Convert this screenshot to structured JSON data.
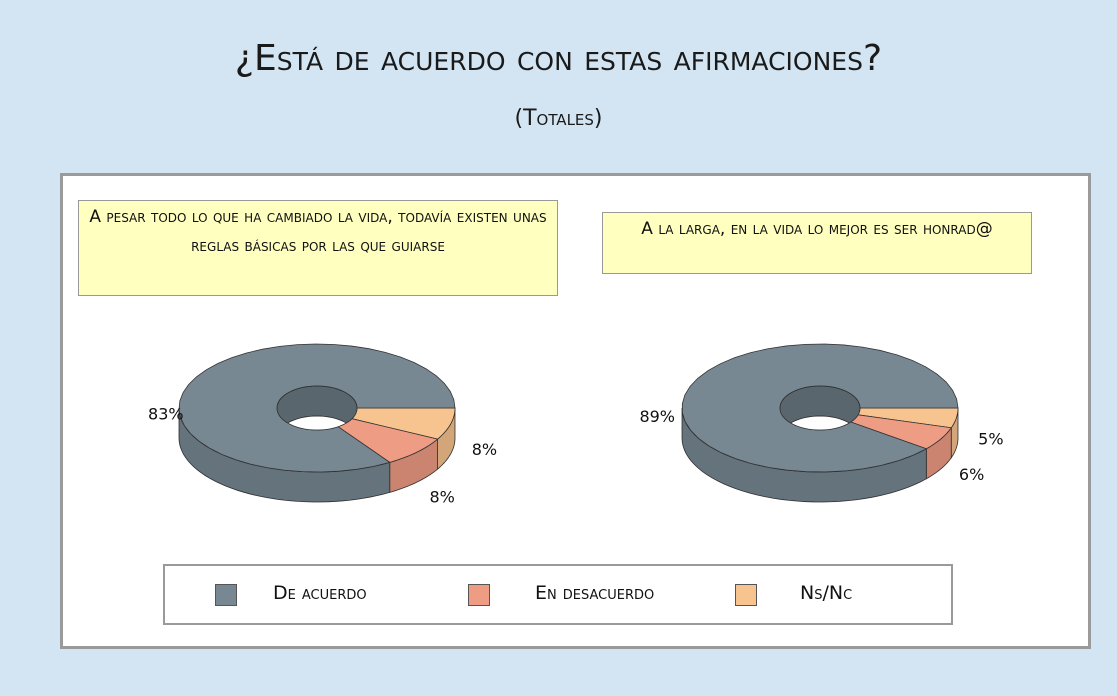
{
  "title": "¿Está de acuerdo con estas afirmaciones?",
  "subtitle": "(Totales)",
  "legend": {
    "categories": [
      "De acuerdo",
      "En desacuerdo",
      "Ns/Nc"
    ],
    "colors": [
      "#778893",
      "#ee9c84",
      "#f7c48f"
    ]
  },
  "chart_data": [
    {
      "type": "doughnut3d",
      "title": "A pesar todo lo que ha cambiado la vida, todavía existen unas reglas básicas por las que guiarse",
      "values": [
        83,
        8,
        8
      ],
      "value_labels": [
        "83%",
        "8%",
        "8%"
      ]
    },
    {
      "type": "doughnut3d",
      "title": "A la larga, en la vida lo mejor es ser honrad@",
      "values": [
        89,
        6,
        5
      ],
      "value_labels": [
        "89%",
        "6%",
        "5%"
      ]
    }
  ]
}
